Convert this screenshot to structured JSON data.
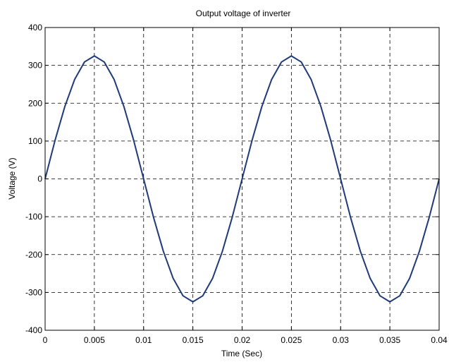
{
  "chart_data": {
    "type": "line",
    "title": "Output voltage of inverter",
    "xlabel": "Time (Sec)",
    "ylabel": "Voltage (V)",
    "xlim": [
      0,
      0.04
    ],
    "ylim": [
      -400,
      400
    ],
    "xticks": [
      0,
      0.005,
      0.01,
      0.015,
      0.02,
      0.025,
      0.03,
      0.035,
      0.04
    ],
    "xtick_labels": [
      "0",
      "0.005",
      "0.01",
      "0.015",
      "0.02",
      "0.025",
      "0.03",
      "0.035",
      "0.04"
    ],
    "yticks": [
      400,
      300,
      200,
      100,
      0,
      -100,
      -200,
      -300,
      -400
    ],
    "ytick_labels": [
      "400",
      "300",
      "200",
      "100",
      "0",
      "-100",
      "-200",
      "-300",
      "-400"
    ],
    "grid": true,
    "color": "#1f3a7a",
    "series": [
      {
        "x": [
          0,
          0.001,
          0.002,
          0.003,
          0.004,
          0.005,
          0.006,
          0.007,
          0.008,
          0.009,
          0.01,
          0.011,
          0.012,
          0.013,
          0.014,
          0.015,
          0.016,
          0.017,
          0.018,
          0.019,
          0.02,
          0.021,
          0.022,
          0.023,
          0.024,
          0.025,
          0.026,
          0.027,
          0.028,
          0.029,
          0.03,
          0.031,
          0.032,
          0.033,
          0.034,
          0.035,
          0.036,
          0.037,
          0.038,
          0.039,
          0.04
        ],
        "values": [
          0,
          101,
          191,
          263,
          309,
          325,
          309,
          263,
          191,
          101,
          0,
          -101,
          -191,
          -263,
          -309,
          -325,
          -309,
          -263,
          -191,
          -101,
          0,
          101,
          191,
          263,
          309,
          325,
          309,
          263,
          191,
          101,
          0,
          -101,
          -191,
          -263,
          -309,
          -325,
          -309,
          -263,
          -191,
          -101,
          0
        ]
      }
    ]
  }
}
